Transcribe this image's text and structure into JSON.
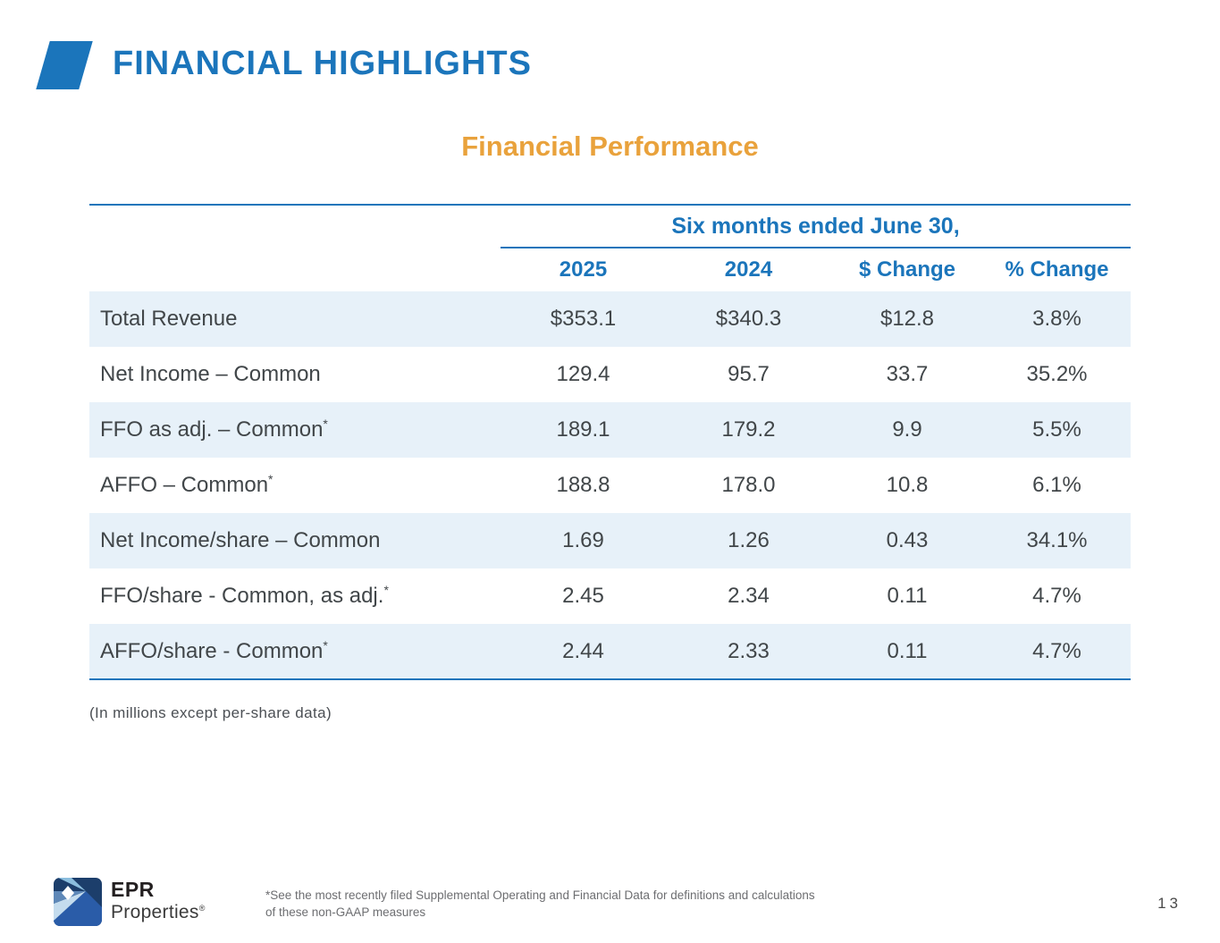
{
  "slide": {
    "title": "FINANCIAL HIGHLIGHTS",
    "subtitle": "Financial Performance",
    "page_number": "13"
  },
  "table": {
    "span_header": "Six months ended June 30,",
    "columns": [
      "2025",
      "2024",
      "$ Change",
      "% Change"
    ],
    "rows": [
      {
        "label": "Total Revenue",
        "star": false,
        "values": [
          "$353.1",
          "$340.3",
          "$12.8",
          "3.8%"
        ]
      },
      {
        "label": "Net Income – Common",
        "star": false,
        "values": [
          "129.4",
          "95.7",
          "33.7",
          "35.2%"
        ]
      },
      {
        "label": "FFO as adj. – Common",
        "star": true,
        "values": [
          "189.1",
          "179.2",
          "9.9",
          "5.5%"
        ]
      },
      {
        "label": "AFFO – Common",
        "star": true,
        "values": [
          "188.8",
          "178.0",
          "10.8",
          "6.1%"
        ]
      },
      {
        "label": "Net Income/share – Common",
        "star": false,
        "values": [
          "1.69",
          "1.26",
          "0.43",
          "34.1%"
        ]
      },
      {
        "label": "FFO/share - Common, as adj.",
        "star": true,
        "values": [
          "2.45",
          "2.34",
          "0.11",
          "4.7%"
        ]
      },
      {
        "label": "AFFO/share - Common",
        "star": true,
        "values": [
          "2.44",
          "2.33",
          "0.11",
          "4.7%"
        ]
      }
    ],
    "units_note": "(In millions except per-share data)"
  },
  "footer": {
    "brand_name": "EPR",
    "brand_subname": "Properties",
    "brand_reg": "®",
    "footnote_line1": "*See the most recently filed Supplemental Operating and Financial Data for definitions and calculations",
    "footnote_line2": "of these non-GAAP measures"
  },
  "colors": {
    "brand_blue": "#1B75BB",
    "accent_orange": "#E9A23C",
    "row_highlight": "#E7F1F9",
    "text_dark": "#414649",
    "footnote_gray": "#6D6E71"
  }
}
